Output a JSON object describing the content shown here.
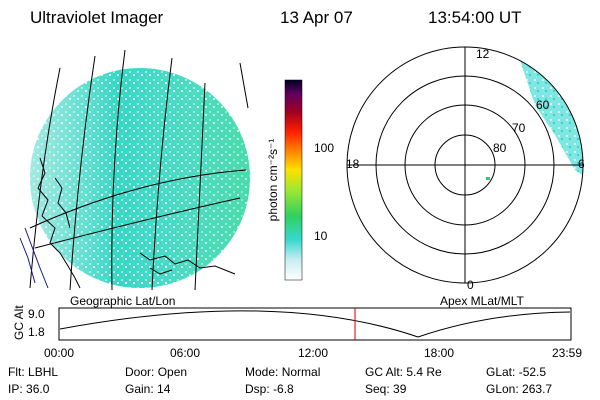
{
  "header": {
    "instrument": "Ultraviolet Imager",
    "date": "13 Apr 07",
    "time": "13:54:00 UT"
  },
  "colorbar": {
    "label": "photon cm⁻²s⁻¹",
    "ticks": [
      "100",
      "10"
    ]
  },
  "polar": {
    "mlt_labels": [
      "12",
      "18",
      "6",
      "0"
    ],
    "lat_labels": [
      "60",
      "70",
      "80"
    ]
  },
  "captions": {
    "left": "Geographic Lat/Lon",
    "right": "Apex MLat/MLT"
  },
  "altitude_plot": {
    "ylabel": "GC Alt",
    "y_ticks": [
      "9.0",
      "1.8"
    ],
    "x_ticks": [
      "00:00",
      "06:00",
      "12:00",
      "18:00",
      "23:59"
    ]
  },
  "info": {
    "row1": [
      {
        "label": "Flt:",
        "value": "LBHL"
      },
      {
        "label": "Door:",
        "value": "Open"
      },
      {
        "label": "Mode:",
        "value": "Normal"
      },
      {
        "label": "GC Alt:",
        "value": "5.4 Re"
      },
      {
        "label": "GLat:",
        "value": "-52.5"
      }
    ],
    "row2": [
      {
        "label": "IP:",
        "value": "36.0"
      },
      {
        "label": "Gain:",
        "value": "14"
      },
      {
        "label": "Dsp:",
        "value": "-6.8"
      },
      {
        "label": "Seq:",
        "value": "39"
      },
      {
        "label": "GLon:",
        "value": "263.7"
      }
    ]
  },
  "colors": {
    "ground": "#2fd5cf",
    "speckle": "#7ee89a",
    "pale": "#d8f0ee",
    "current_time_marker": "#cc0000"
  }
}
